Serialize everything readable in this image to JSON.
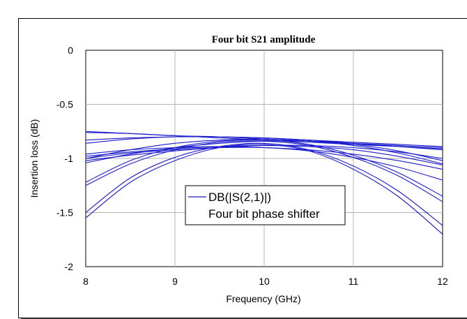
{
  "chart_data": {
    "type": "line",
    "title": "Four bit S21 amplitude",
    "xlabel": "Frequency (GHz)",
    "ylabel": "Insertion loss (dB)",
    "xlim": [
      8,
      12
    ],
    "ylim": [
      -2,
      0
    ],
    "xticks": [
      "8",
      "9",
      "10",
      "11",
      "12"
    ],
    "yticks": [
      "0",
      "-0.5",
      "-1",
      "-1.5",
      "-2"
    ],
    "grid": true,
    "legend": {
      "placement": "center",
      "entries": [
        "DB(|S(2,1)|)",
        "Four bit phase shifter"
      ]
    },
    "line_color": "#1a1acc",
    "x": [
      8,
      8.5,
      9,
      9.5,
      10,
      10.5,
      11,
      11.5,
      12
    ],
    "series": [
      {
        "values": [
          -0.75,
          -0.77,
          -0.79,
          -0.8,
          -0.82,
          -0.84,
          -0.86,
          -0.88,
          -0.9
        ]
      },
      {
        "values": [
          -0.76,
          -0.77,
          -0.79,
          -0.81,
          -0.83,
          -0.85,
          -0.87,
          -0.89,
          -0.91
        ]
      },
      {
        "values": [
          -0.83,
          -0.81,
          -0.8,
          -0.8,
          -0.81,
          -0.83,
          -0.85,
          -0.87,
          -0.89
        ]
      },
      {
        "values": [
          -0.86,
          -0.82,
          -0.8,
          -0.8,
          -0.81,
          -0.83,
          -0.86,
          -0.89,
          -0.92
        ]
      },
      {
        "values": [
          -1.0,
          -0.92,
          -0.86,
          -0.83,
          -0.82,
          -0.84,
          -0.88,
          -0.95,
          -1.05
        ]
      },
      {
        "values": [
          -1.04,
          -0.96,
          -0.9,
          -0.86,
          -0.84,
          -0.84,
          -0.87,
          -0.93,
          -1.02
        ]
      },
      {
        "values": [
          -1.02,
          -0.97,
          -0.93,
          -0.9,
          -0.88,
          -0.88,
          -0.9,
          -0.94,
          -1.0
        ]
      },
      {
        "values": [
          -0.96,
          -0.92,
          -0.9,
          -0.89,
          -0.9,
          -0.92,
          -0.96,
          -1.02,
          -1.1
        ]
      },
      {
        "values": [
          -1.22,
          -1.02,
          -0.9,
          -0.84,
          -0.83,
          -0.87,
          -0.97,
          -1.13,
          -1.35
        ]
      },
      {
        "values": [
          -1.25,
          -1.05,
          -0.92,
          -0.85,
          -0.84,
          -0.88,
          -0.99,
          -1.16,
          -1.4
        ]
      },
      {
        "values": [
          -1.5,
          -1.18,
          -0.99,
          -0.89,
          -0.86,
          -0.92,
          -1.07,
          -1.3,
          -1.62
        ]
      },
      {
        "values": [
          -1.55,
          -1.22,
          -1.02,
          -0.9,
          -0.87,
          -0.93,
          -1.1,
          -1.35,
          -1.7
        ]
      },
      {
        "values": [
          -1.0,
          -0.95,
          -0.92,
          -0.9,
          -0.9,
          -0.93,
          -0.99,
          -1.08,
          -1.2
        ]
      },
      {
        "values": [
          -0.98,
          -0.94,
          -0.91,
          -0.89,
          -0.88,
          -0.89,
          -0.92,
          -0.98,
          -1.06
        ]
      }
    ]
  }
}
